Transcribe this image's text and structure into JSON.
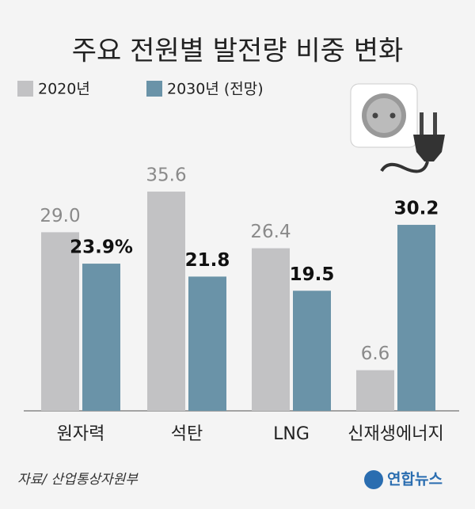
{
  "chart_data": {
    "type": "bar",
    "title": "주요 전원별 발전량 비중 변화",
    "categories": [
      "원자력",
      "석탄",
      "LNG",
      "신재생에너지"
    ],
    "series": [
      {
        "name": "2020년",
        "color": "#c2c2c4",
        "values": [
          29.0,
          35.6,
          26.4,
          6.6
        ],
        "value_labels": [
          "29.0",
          "35.6",
          "26.4",
          "6.6"
        ]
      },
      {
        "name": "2030년 (전망)",
        "color": "#6a93a8",
        "values": [
          23.9,
          21.8,
          19.5,
          30.2
        ],
        "value_labels": [
          "23.9%",
          "21.8",
          "19.5",
          "30.2"
        ]
      }
    ],
    "source": "자료/ 산업통상자원부",
    "logo": "연합뉴스"
  }
}
